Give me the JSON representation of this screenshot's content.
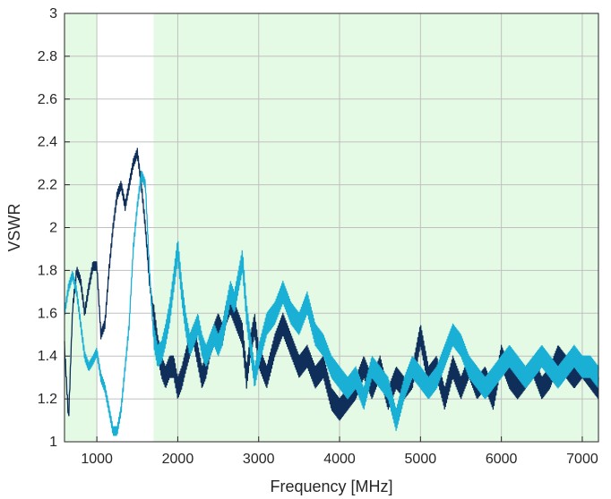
{
  "chart_data": {
    "type": "line",
    "title": "",
    "xlabel": "Frequency [MHz]",
    "ylabel": "VSWR",
    "xlim": [
      600,
      7200
    ],
    "ylim": [
      1,
      3
    ],
    "x_ticks": [
      1000,
      2000,
      3000,
      4000,
      5000,
      6000,
      7000
    ],
    "x_tick_labels": [
      "1000",
      "2000",
      "3000",
      "4000",
      "5000",
      "6000",
      "7000"
    ],
    "y_ticks": [
      1,
      1.2,
      1.4,
      1.6,
      1.8,
      2,
      2.2,
      2.4,
      2.6,
      2.8,
      3
    ],
    "y_tick_labels": [
      "1",
      "1.2",
      "1.4",
      "1.6",
      "1.8",
      "2",
      "2.2",
      "2.4",
      "2.6",
      "2.8",
      "3"
    ],
    "grid": true,
    "legend": "none",
    "shaded_regions": [
      {
        "x_start": 600,
        "x_end": 1000,
        "color": "#e4fae4"
      },
      {
        "x_start": 1700,
        "x_end": 7200,
        "color": "#e4fae4"
      }
    ],
    "series": [
      {
        "color": "#0f2f5a",
        "ripple": 0.05,
        "x": [
          600,
          650,
          700,
          750,
          800,
          850,
          900,
          950,
          1000,
          1050,
          1100,
          1150,
          1200,
          1250,
          1300,
          1350,
          1400,
          1450,
          1500,
          1550,
          1600,
          1650,
          1700,
          1750,
          1800,
          1850,
          1900,
          1950,
          2000,
          2050,
          2100,
          2150,
          2200,
          2250,
          2300,
          2350,
          2400,
          2450,
          2500,
          2550,
          2600,
          2650,
          2700,
          2750,
          2800,
          2850,
          2900,
          2950,
          3000,
          3100,
          3200,
          3300,
          3400,
          3500,
          3600,
          3700,
          3800,
          3900,
          4000,
          4100,
          4200,
          4300,
          4400,
          4500,
          4600,
          4700,
          4800,
          4900,
          5000,
          5100,
          5200,
          5300,
          5400,
          5500,
          5600,
          5700,
          5800,
          5900,
          6000,
          6100,
          6200,
          6300,
          6400,
          6500,
          6600,
          6700,
          6800,
          6900,
          7000,
          7100,
          7200
        ],
        "values": [
          1.45,
          1.1,
          1.62,
          1.8,
          1.75,
          1.6,
          1.72,
          1.82,
          1.82,
          1.5,
          1.55,
          1.8,
          2.0,
          2.15,
          2.2,
          2.1,
          2.2,
          2.3,
          2.35,
          2.2,
          2.0,
          1.75,
          1.6,
          1.45,
          1.35,
          1.3,
          1.35,
          1.35,
          1.25,
          1.3,
          1.38,
          1.45,
          1.5,
          1.4,
          1.3,
          1.35,
          1.45,
          1.5,
          1.55,
          1.5,
          1.6,
          1.65,
          1.6,
          1.55,
          1.5,
          1.3,
          1.45,
          1.55,
          1.4,
          1.3,
          1.45,
          1.55,
          1.45,
          1.35,
          1.4,
          1.3,
          1.35,
          1.2,
          1.15,
          1.2,
          1.25,
          1.35,
          1.25,
          1.35,
          1.2,
          1.3,
          1.25,
          1.3,
          1.5,
          1.3,
          1.35,
          1.2,
          1.35,
          1.25,
          1.35,
          1.25,
          1.3,
          1.2,
          1.4,
          1.3,
          1.25,
          1.3,
          1.35,
          1.25,
          1.3,
          1.4,
          1.35,
          1.3,
          1.35,
          1.3,
          1.25
        ]
      },
      {
        "color": "#1ab0d6",
        "ripple": 0.05,
        "x": [
          600,
          650,
          700,
          750,
          800,
          850,
          900,
          950,
          1000,
          1050,
          1100,
          1150,
          1200,
          1250,
          1300,
          1350,
          1400,
          1450,
          1500,
          1550,
          1600,
          1650,
          1700,
          1750,
          1800,
          1850,
          1900,
          1950,
          2000,
          2050,
          2100,
          2150,
          2200,
          2250,
          2300,
          2350,
          2400,
          2450,
          2500,
          2550,
          2600,
          2650,
          2700,
          2750,
          2800,
          2850,
          2900,
          2950,
          3000,
          3100,
          3200,
          3300,
          3400,
          3500,
          3600,
          3700,
          3800,
          3900,
          4000,
          4100,
          4200,
          4300,
          4400,
          4500,
          4600,
          4700,
          4800,
          4900,
          5000,
          5100,
          5200,
          5300,
          5400,
          5500,
          5600,
          5700,
          5800,
          5900,
          6000,
          6100,
          6200,
          6300,
          6400,
          6500,
          6600,
          6700,
          6800,
          6900,
          7000,
          7100,
          7200
        ],
        "values": [
          1.6,
          1.72,
          1.78,
          1.7,
          1.55,
          1.4,
          1.35,
          1.38,
          1.42,
          1.3,
          1.25,
          1.15,
          1.05,
          1.05,
          1.15,
          1.35,
          1.55,
          1.9,
          2.1,
          2.25,
          2.2,
          1.8,
          1.5,
          1.4,
          1.42,
          1.5,
          1.6,
          1.75,
          1.9,
          1.7,
          1.55,
          1.45,
          1.5,
          1.55,
          1.45,
          1.4,
          1.45,
          1.5,
          1.45,
          1.5,
          1.6,
          1.7,
          1.65,
          1.75,
          1.85,
          1.6,
          1.45,
          1.3,
          1.4,
          1.55,
          1.6,
          1.7,
          1.6,
          1.55,
          1.65,
          1.5,
          1.45,
          1.35,
          1.3,
          1.25,
          1.3,
          1.2,
          1.35,
          1.3,
          1.25,
          1.1,
          1.25,
          1.35,
          1.3,
          1.25,
          1.3,
          1.4,
          1.5,
          1.45,
          1.35,
          1.3,
          1.25,
          1.3,
          1.35,
          1.4,
          1.35,
          1.3,
          1.35,
          1.4,
          1.35,
          1.3,
          1.35,
          1.4,
          1.35,
          1.35,
          1.3
        ]
      }
    ]
  },
  "colors": {
    "axis": "#262626",
    "grid": "#c0c0c0",
    "plot_background": "#ffffff"
  }
}
